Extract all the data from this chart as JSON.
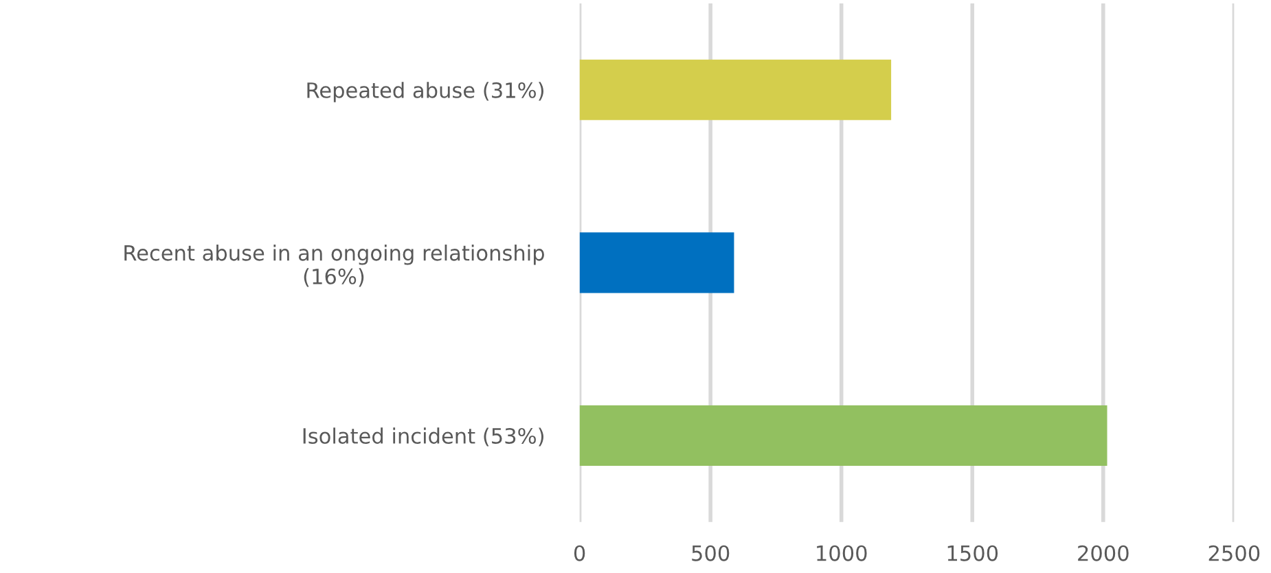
{
  "chart_data": {
    "type": "bar",
    "orientation": "horizontal",
    "categories": [
      "Repeated abuse (31%)",
      "Recent abuse in an ongoing relationship\n(16%)",
      "Isolated incident (53%)"
    ],
    "values": [
      1190,
      590,
      2015
    ],
    "colors": [
      "#d4ce4c",
      "#0070c0",
      "#92c060"
    ],
    "xlim": [
      0,
      2500
    ],
    "xticks": [
      0,
      500,
      1000,
      1500,
      2000,
      2500
    ],
    "grid": "x"
  }
}
